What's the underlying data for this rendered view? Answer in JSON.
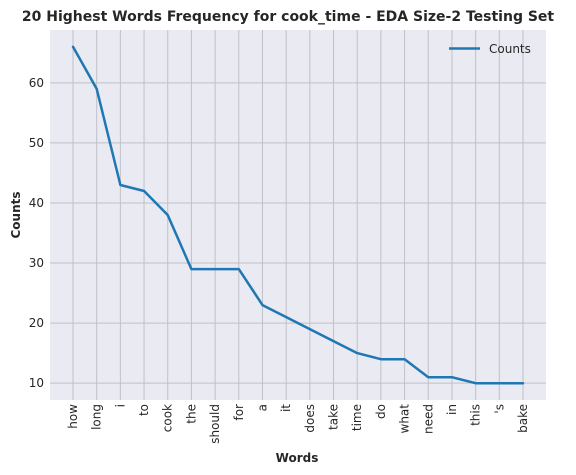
{
  "chart_data": {
    "type": "line",
    "title": "20 Highest Words Frequency for cook_time - EDA Size-2 Testing Set",
    "xlabel": "Words",
    "ylabel": "Counts",
    "categories": [
      "how",
      "long",
      "i",
      "to",
      "cook",
      "the",
      "should",
      "for",
      "a",
      "it",
      "does",
      "take",
      "time",
      "do",
      "what",
      "need",
      "in",
      "this",
      "'s",
      "bake"
    ],
    "series": [
      {
        "name": "Counts",
        "values": [
          66,
          59,
          43,
          42,
          38,
          29,
          29,
          29,
          23,
          21,
          19,
          17,
          15,
          14,
          14,
          11,
          11,
          10,
          10,
          10
        ]
      }
    ],
    "yticks": [
      10,
      20,
      30,
      40,
      50,
      60
    ],
    "ylim": [
      7.2,
      68.8
    ],
    "grid": true,
    "legend": "top-right",
    "colors": {
      "line": "#1f77b4",
      "plot_background": "#eaeaf2",
      "grid": "#c0c0c8"
    }
  }
}
